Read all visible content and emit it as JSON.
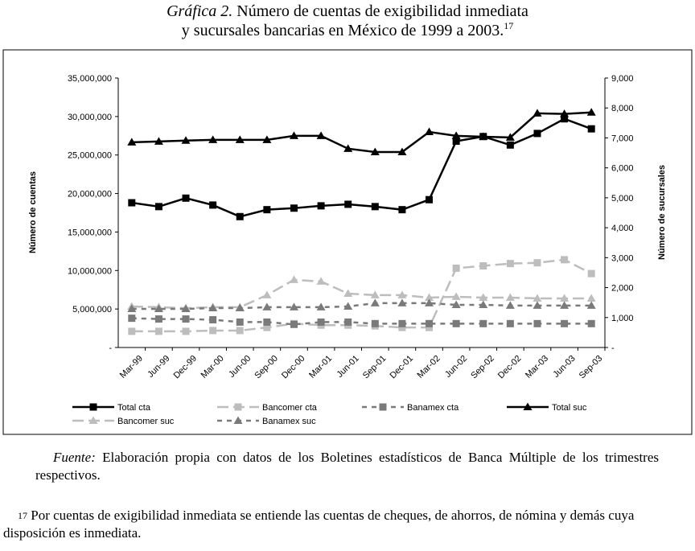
{
  "chart_data": {
    "type": "line",
    "title_label": "Gráfica 2.",
    "title_lines": [
      "Número de cuentas de exigibilidad inmediata",
      "y sucursales bancarias en México de 1999 a 2003."
    ],
    "title_note": "17",
    "ylabel": "Número de cuentas",
    "y2label": "Número de sucursales",
    "categories": [
      "Mar-99",
      "Jun-99",
      "Dec-99",
      "Mar-00",
      "Jun-00",
      "Sep-00",
      "Dec-00",
      "Mar-01",
      "Jun-01",
      "Sep-01",
      "Dec-01",
      "Mar-02",
      "Jun-02",
      "Sep-02",
      "Dec-02",
      "Mar-03",
      "Jun-03",
      "Sep-03"
    ],
    "ylim": [
      0,
      35000000
    ],
    "yticks": [
      {
        "value": 0,
        "label": "-"
      },
      {
        "value": 5000000,
        "label": "5,000,000"
      },
      {
        "value": 10000000,
        "label": "10,000,000"
      },
      {
        "value": 15000000,
        "label": "15,000,000"
      },
      {
        "value": 20000000,
        "label": "20,000,000"
      },
      {
        "value": 25000000,
        "label": "25,000,000"
      },
      {
        "value": 30000000,
        "label": "30,000,000"
      },
      {
        "value": 35000000,
        "label": "35,000,000"
      }
    ],
    "y2lim": [
      0,
      9000
    ],
    "y2ticks": [
      {
        "value": 0,
        "label": "-"
      },
      {
        "value": 1000,
        "label": "1,000"
      },
      {
        "value": 2000,
        "label": "2,000"
      },
      {
        "value": 3000,
        "label": "3,000"
      },
      {
        "value": 4000,
        "label": "4,000"
      },
      {
        "value": 5000,
        "label": "5,000"
      },
      {
        "value": 6000,
        "label": "6,000"
      },
      {
        "value": 7000,
        "label": "7,000"
      },
      {
        "value": 8000,
        "label": "8,000"
      },
      {
        "value": 9000,
        "label": "9,000"
      }
    ],
    "series": [
      {
        "name": "Total cta",
        "color": "#000000",
        "dash": "solid",
        "marker": "square",
        "values": [
          18800000,
          18300000,
          19400000,
          18500000,
          17000000,
          17900000,
          18100000,
          18400000,
          18600000,
          18300000,
          17900000,
          19200000,
          26800000,
          27400000,
          26300000,
          27800000,
          29700000,
          28400000
        ]
      },
      {
        "name": "Bancomer cta",
        "color": "#bdbdbd",
        "dash": "long",
        "marker": "square",
        "values": [
          2100000,
          2100000,
          2100000,
          2200000,
          2200000,
          2600000,
          3100000,
          2900000,
          2900000,
          2800000,
          2600000,
          2600000,
          10300000,
          10600000,
          10900000,
          11000000,
          11400000,
          9600000
        ]
      },
      {
        "name": "Banamex cta",
        "color": "#7a7a7a",
        "dash": "short",
        "marker": "square",
        "values": [
          3800000,
          3700000,
          3700000,
          3600000,
          3300000,
          3300000,
          3000000,
          3300000,
          3300000,
          3100000,
          3100000,
          3100000,
          3100000,
          3100000,
          3100000,
          3100000,
          3100000,
          3100000
        ]
      },
      {
        "name": "Total suc",
        "color": "#000000",
        "dash": "solid",
        "marker": "triangle",
        "axis": "y2",
        "values": [
          6855,
          6880,
          6910,
          6935,
          6935,
          6935,
          7070,
          7070,
          6640,
          6530,
          6530,
          7200,
          7070,
          7040,
          7015,
          7820,
          7800,
          7850
        ]
      },
      {
        "name": "Bancomer suc",
        "color": "#bdbdbd",
        "dash": "long",
        "marker": "triangle",
        "axis": "y2",
        "values": [
          1370,
          1345,
          1315,
          1345,
          1345,
          1750,
          2260,
          2205,
          1800,
          1750,
          1750,
          1665,
          1695,
          1665,
          1665,
          1640,
          1640,
          1640
        ]
      },
      {
        "name": "Banamex suc",
        "color": "#7a7a7a",
        "dash": "short",
        "marker": "triangle",
        "axis": "y2",
        "values": [
          1290,
          1290,
          1290,
          1315,
          1315,
          1345,
          1345,
          1345,
          1370,
          1480,
          1480,
          1480,
          1425,
          1425,
          1400,
          1400,
          1400,
          1400
        ]
      }
    ]
  },
  "source": {
    "label": "Fuente:",
    "text": "Elaboración propia con datos de los Boletines estadísticos de Banca Múltiple de los trimestres respectivos."
  },
  "footnote": {
    "mark": "17",
    "text": "Por cuentas de exigibilidad inmediata se entiende las cuentas de cheques, de ahorros, de nómina y demás cuya disposición es inmediata."
  }
}
